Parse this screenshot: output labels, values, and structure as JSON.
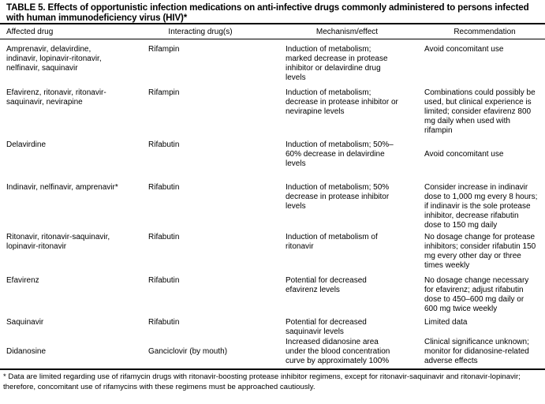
{
  "title": "TABLE 5. Effects of opportunistic infection medications on anti-infective drugs commonly administered to persons infected with human immunodeficiency virus (HIV)*",
  "headers": [
    "Affected drug",
    "Interacting drug(s)",
    "Mechanism/effect",
    "Recommendation"
  ],
  "rows": [
    {
      "affected": "Amprenavir, delavirdine,\nindinavir, lopinavir-ritonavir,\nnelfinavir, saquinavir",
      "interacting": "Rifampin",
      "mechanism": "Induction of metabolism;\nmarked decrease in protease\ninhibitor or delavirdine drug\nlevels",
      "recommendation": "Avoid concomitant use"
    },
    {
      "affected": "Efavirenz, ritonavir, ritonavir-\nsaquinavir, nevirapine",
      "interacting": "Rifampin",
      "mechanism": "Induction of metabolism;\ndecrease in protease inhibitor or\nnevirapine levels",
      "recommendation": "Combinations could possibly be\nused, but clinical experience is\nlimited; consider efavirenz 800\nmg daily when used with\nrifampin"
    },
    {
      "affected": "Delavirdine",
      "interacting": "Rifabutin",
      "mechanism": "Induction of metabolism; 50%–\n60% decrease in delavirdine\nlevels",
      "recommendation": "Avoid concomitant use"
    },
    {
      "affected": "Indinavir, nelfinavir, amprenavir*",
      "interacting": "Rifabutin",
      "mechanism": "Induction of metabolism; 50%\ndecrease in protease inhibitor\nlevels",
      "recommendation": "Consider increase in indinavir\ndose to 1,000 mg every 8 hours;\nif indinavir is the sole protease\ninhibitor, decrease rifabutin\ndose to 150 mg daily"
    },
    {
      "affected": "Ritonavir, ritonavir-saquinavir,\nlopinavir-ritonavir",
      "interacting": "Rifabutin",
      "mechanism": "Induction of metabolism of\nritonavir",
      "recommendation": "No dosage change for protease\ninhibitors; consider rifabutin 150\nmg every other day or three\ntimes weekly"
    },
    {
      "affected": "Efavirenz",
      "interacting": "Rifabutin",
      "mechanism": "Potential for decreased\nefavirenz levels",
      "recommendation": "No dosage change necessary\nfor efavirenz; adjust rifabutin\ndose to 450–600 mg daily or\n600 mg twice weekly"
    },
    {
      "affected": "Saquinavir",
      "interacting": "Rifabutin",
      "mechanism": "Potential for decreased\nsaquinavir levels",
      "recommendation": "Limited data"
    },
    {
      "affected": "Didanosine",
      "interacting": "Ganciclovir (by mouth)",
      "mechanism": "Increased didanosine area\nunder the blood concentration\ncurve by approximately 100%",
      "recommendation": "Clinical significance unknown;\nmonitor for didanosine-related\nadverse effects"
    }
  ],
  "footnote": "* Data are limited regarding use of rifamycin drugs with ritonavir-boosting protease inhibitor regimens, except for ritonavir-saquinavir and ritonavir-lopinavir;\n  therefore, concomitant use of rifamycins with these regimens must be approached cautiously."
}
